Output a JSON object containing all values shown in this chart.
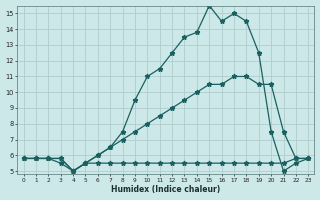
{
  "xlabel": "Humidex (Indice chaleur)",
  "bg_color": "#cce8e8",
  "grid_color": "#b0cccc",
  "line_color": "#1a6060",
  "xlim": [
    -0.5,
    23.5
  ],
  "ylim": [
    4.8,
    15.5
  ],
  "xtick_labels": [
    "0",
    "1",
    "2",
    "3",
    "4",
    "5",
    "6",
    "7",
    "8",
    "9",
    "10",
    "11",
    "12",
    "13",
    "14",
    "15",
    "16",
    "17",
    "18",
    "19",
    "20",
    "21",
    "22",
    "23"
  ],
  "ytick_labels": [
    "5",
    "6",
    "7",
    "8",
    "9",
    "10",
    "11",
    "12",
    "13",
    "14",
    "15"
  ],
  "ytick_vals": [
    5,
    6,
    7,
    8,
    9,
    10,
    11,
    12,
    13,
    14,
    15
  ],
  "line1_x": [
    0,
    1,
    2,
    3,
    4,
    5,
    6,
    7,
    8,
    9,
    10,
    11,
    12,
    13,
    14,
    15,
    16,
    17,
    18,
    19,
    20,
    21,
    22,
    23
  ],
  "line1_y": [
    5.8,
    5.8,
    5.8,
    5.8,
    5.0,
    5.5,
    5.5,
    5.5,
    5.5,
    5.5,
    5.5,
    5.5,
    5.5,
    5.5,
    5.5,
    5.5,
    5.5,
    5.5,
    5.5,
    5.5,
    5.5,
    5.5,
    5.8,
    5.8
  ],
  "line2_x": [
    0,
    1,
    2,
    3,
    4,
    5,
    6,
    7,
    8,
    9,
    10,
    11,
    12,
    13,
    14,
    15,
    16,
    17,
    18,
    19,
    20,
    21,
    22,
    23
  ],
  "line2_y": [
    5.8,
    5.8,
    5.8,
    5.8,
    5.0,
    5.5,
    6.0,
    6.5,
    7.0,
    7.5,
    8.0,
    8.5,
    9.0,
    9.5,
    10.0,
    10.5,
    10.5,
    11.0,
    11.0,
    10.5,
    10.5,
    7.5,
    5.8,
    5.8
  ],
  "line3_x": [
    0,
    1,
    2,
    3,
    4,
    5,
    6,
    7,
    8,
    9,
    10,
    11,
    12,
    13,
    14,
    15,
    16,
    17,
    18,
    19,
    20,
    21,
    22,
    23
  ],
  "line3_y": [
    5.8,
    5.8,
    5.8,
    5.5,
    5.0,
    5.5,
    6.0,
    6.5,
    7.5,
    9.5,
    11.0,
    11.5,
    12.5,
    13.5,
    13.8,
    15.5,
    14.5,
    15.0,
    14.5,
    12.5,
    7.5,
    5.0,
    5.5,
    5.8
  ]
}
